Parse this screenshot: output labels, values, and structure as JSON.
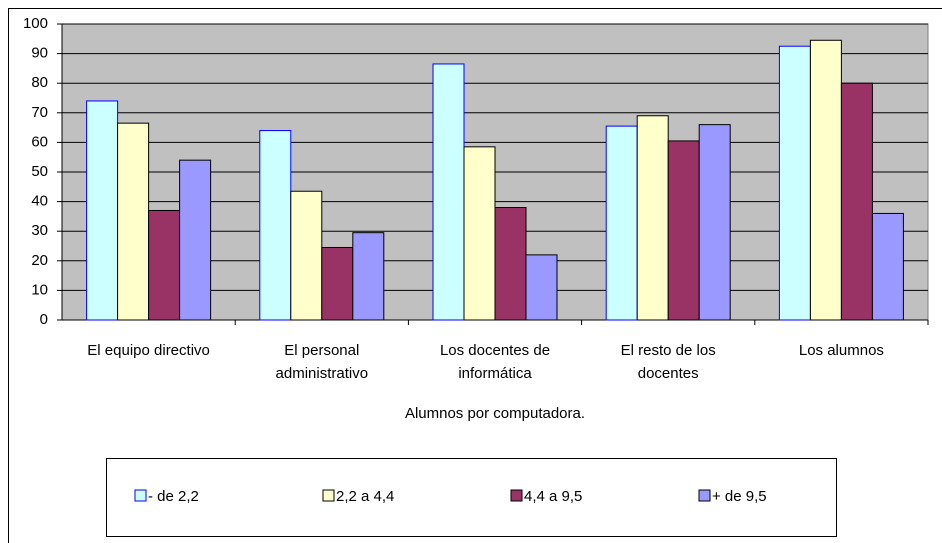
{
  "chart_data": {
    "type": "bar",
    "x_label": "Alumnos por computadora.",
    "categories": [
      "El equipo directivo",
      "El personal administrativo",
      "Los docentes de informática",
      "El resto de los docentes",
      "Los alumnos"
    ],
    "series": [
      {
        "name": "- de 2,2",
        "color": "#ccffff",
        "values": [
          74,
          64,
          86.5,
          65.5,
          92.5
        ]
      },
      {
        "name": "2,2 a 4,4",
        "color": "#ffffcc",
        "values": [
          66.5,
          43.5,
          58.5,
          69,
          94.5
        ]
      },
      {
        "name": "4,4 a 9,5",
        "color": "#993366",
        "values": [
          37,
          24.5,
          38,
          60.5,
          80
        ]
      },
      {
        "name": "+ de 9,5",
        "color": "#9999ff",
        "values": [
          54,
          29.5,
          22,
          66,
          36
        ]
      }
    ],
    "ylim": [
      0,
      100
    ],
    "yticks": [
      0,
      10,
      20,
      30,
      40,
      50,
      60,
      70,
      80,
      90,
      100
    ],
    "grid": true,
    "legend": "bottom"
  }
}
